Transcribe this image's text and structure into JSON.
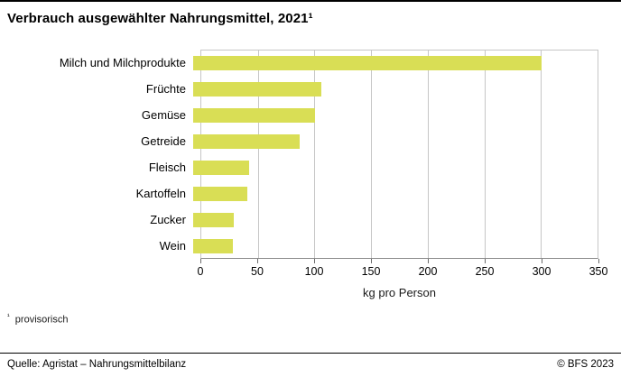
{
  "header": {
    "title": "Verbrauch ausgewählter Nahrungsmittel, 2021¹"
  },
  "chart_data": {
    "type": "bar",
    "orientation": "horizontal",
    "title": "Verbrauch ausgewählter Nahrungsmittel, 2021¹",
    "categories": [
      "Milch und Milchprodukte",
      "Früchte",
      "Gemüse",
      "Getreide",
      "Fleisch",
      "Kartoffeln",
      "Zucker",
      "Wein"
    ],
    "values": [
      301,
      111,
      105,
      92,
      48,
      47,
      35,
      34
    ],
    "xlabel": "kg pro Person",
    "ylabel": "",
    "xlim": [
      0,
      350
    ],
    "xticks": [
      0,
      50,
      100,
      150,
      200,
      250,
      300,
      350
    ],
    "bar_color": "#d9de55",
    "grid": true,
    "legend": "none"
  },
  "footnote": {
    "marker": "¹",
    "text": "provisorisch"
  },
  "footer": {
    "source": "Quelle: Agristat – Nahrungsmittelbilanz",
    "copyright": "© BFS 2023"
  }
}
